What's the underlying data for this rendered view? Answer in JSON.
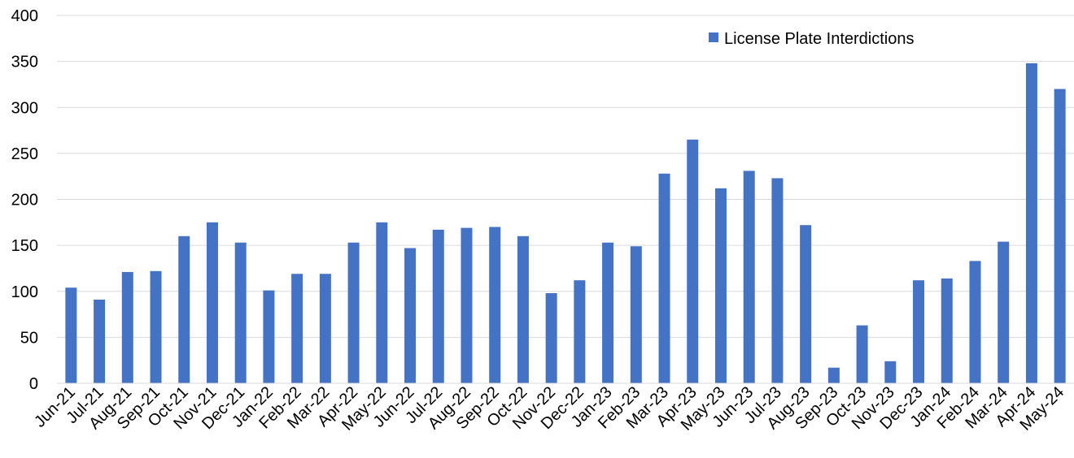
{
  "chart_data": {
    "type": "bar",
    "title": "",
    "xlabel": "",
    "ylabel": "",
    "ylim": [
      0,
      400
    ],
    "yticks": [
      0,
      50,
      100,
      150,
      200,
      250,
      300,
      350,
      400
    ],
    "ytick_labels": [
      "0",
      "50",
      "100",
      "150",
      "200",
      "250",
      "300",
      "350",
      "400"
    ],
    "grid": true,
    "legend_position": "top-right",
    "categories": [
      "Jun-21",
      "Jul-21",
      "Aug-21",
      "Sep-21",
      "Oct-21",
      "Nov-21",
      "Dec-21",
      "Jan-22",
      "Feb-22",
      "Mar-22",
      "Apr-22",
      "May-22",
      "Jun-22",
      "Jul-22",
      "Aug-22",
      "Sep-22",
      "Oct-22",
      "Nov-22",
      "Dec-22",
      "Jan-23",
      "Feb-23",
      "Mar-23",
      "Apr-23",
      "May-23",
      "Jun-23",
      "Jul-23",
      "Aug-23",
      "Sep-23",
      "Oct-23",
      "Nov-23",
      "Dec-23",
      "Jan-24",
      "Feb-24",
      "Mar-24",
      "Apr-24",
      "May-24"
    ],
    "series": [
      {
        "name": "License Plate Interdictions",
        "color": "#4472c4",
        "values": [
          104,
          91,
          121,
          122,
          160,
          175,
          153,
          101,
          119,
          119,
          153,
          175,
          147,
          167,
          169,
          170,
          160,
          98,
          112,
          153,
          149,
          228,
          265,
          212,
          231,
          223,
          172,
          17,
          63,
          24,
          112,
          114,
          133,
          154,
          348,
          320
        ]
      }
    ]
  }
}
